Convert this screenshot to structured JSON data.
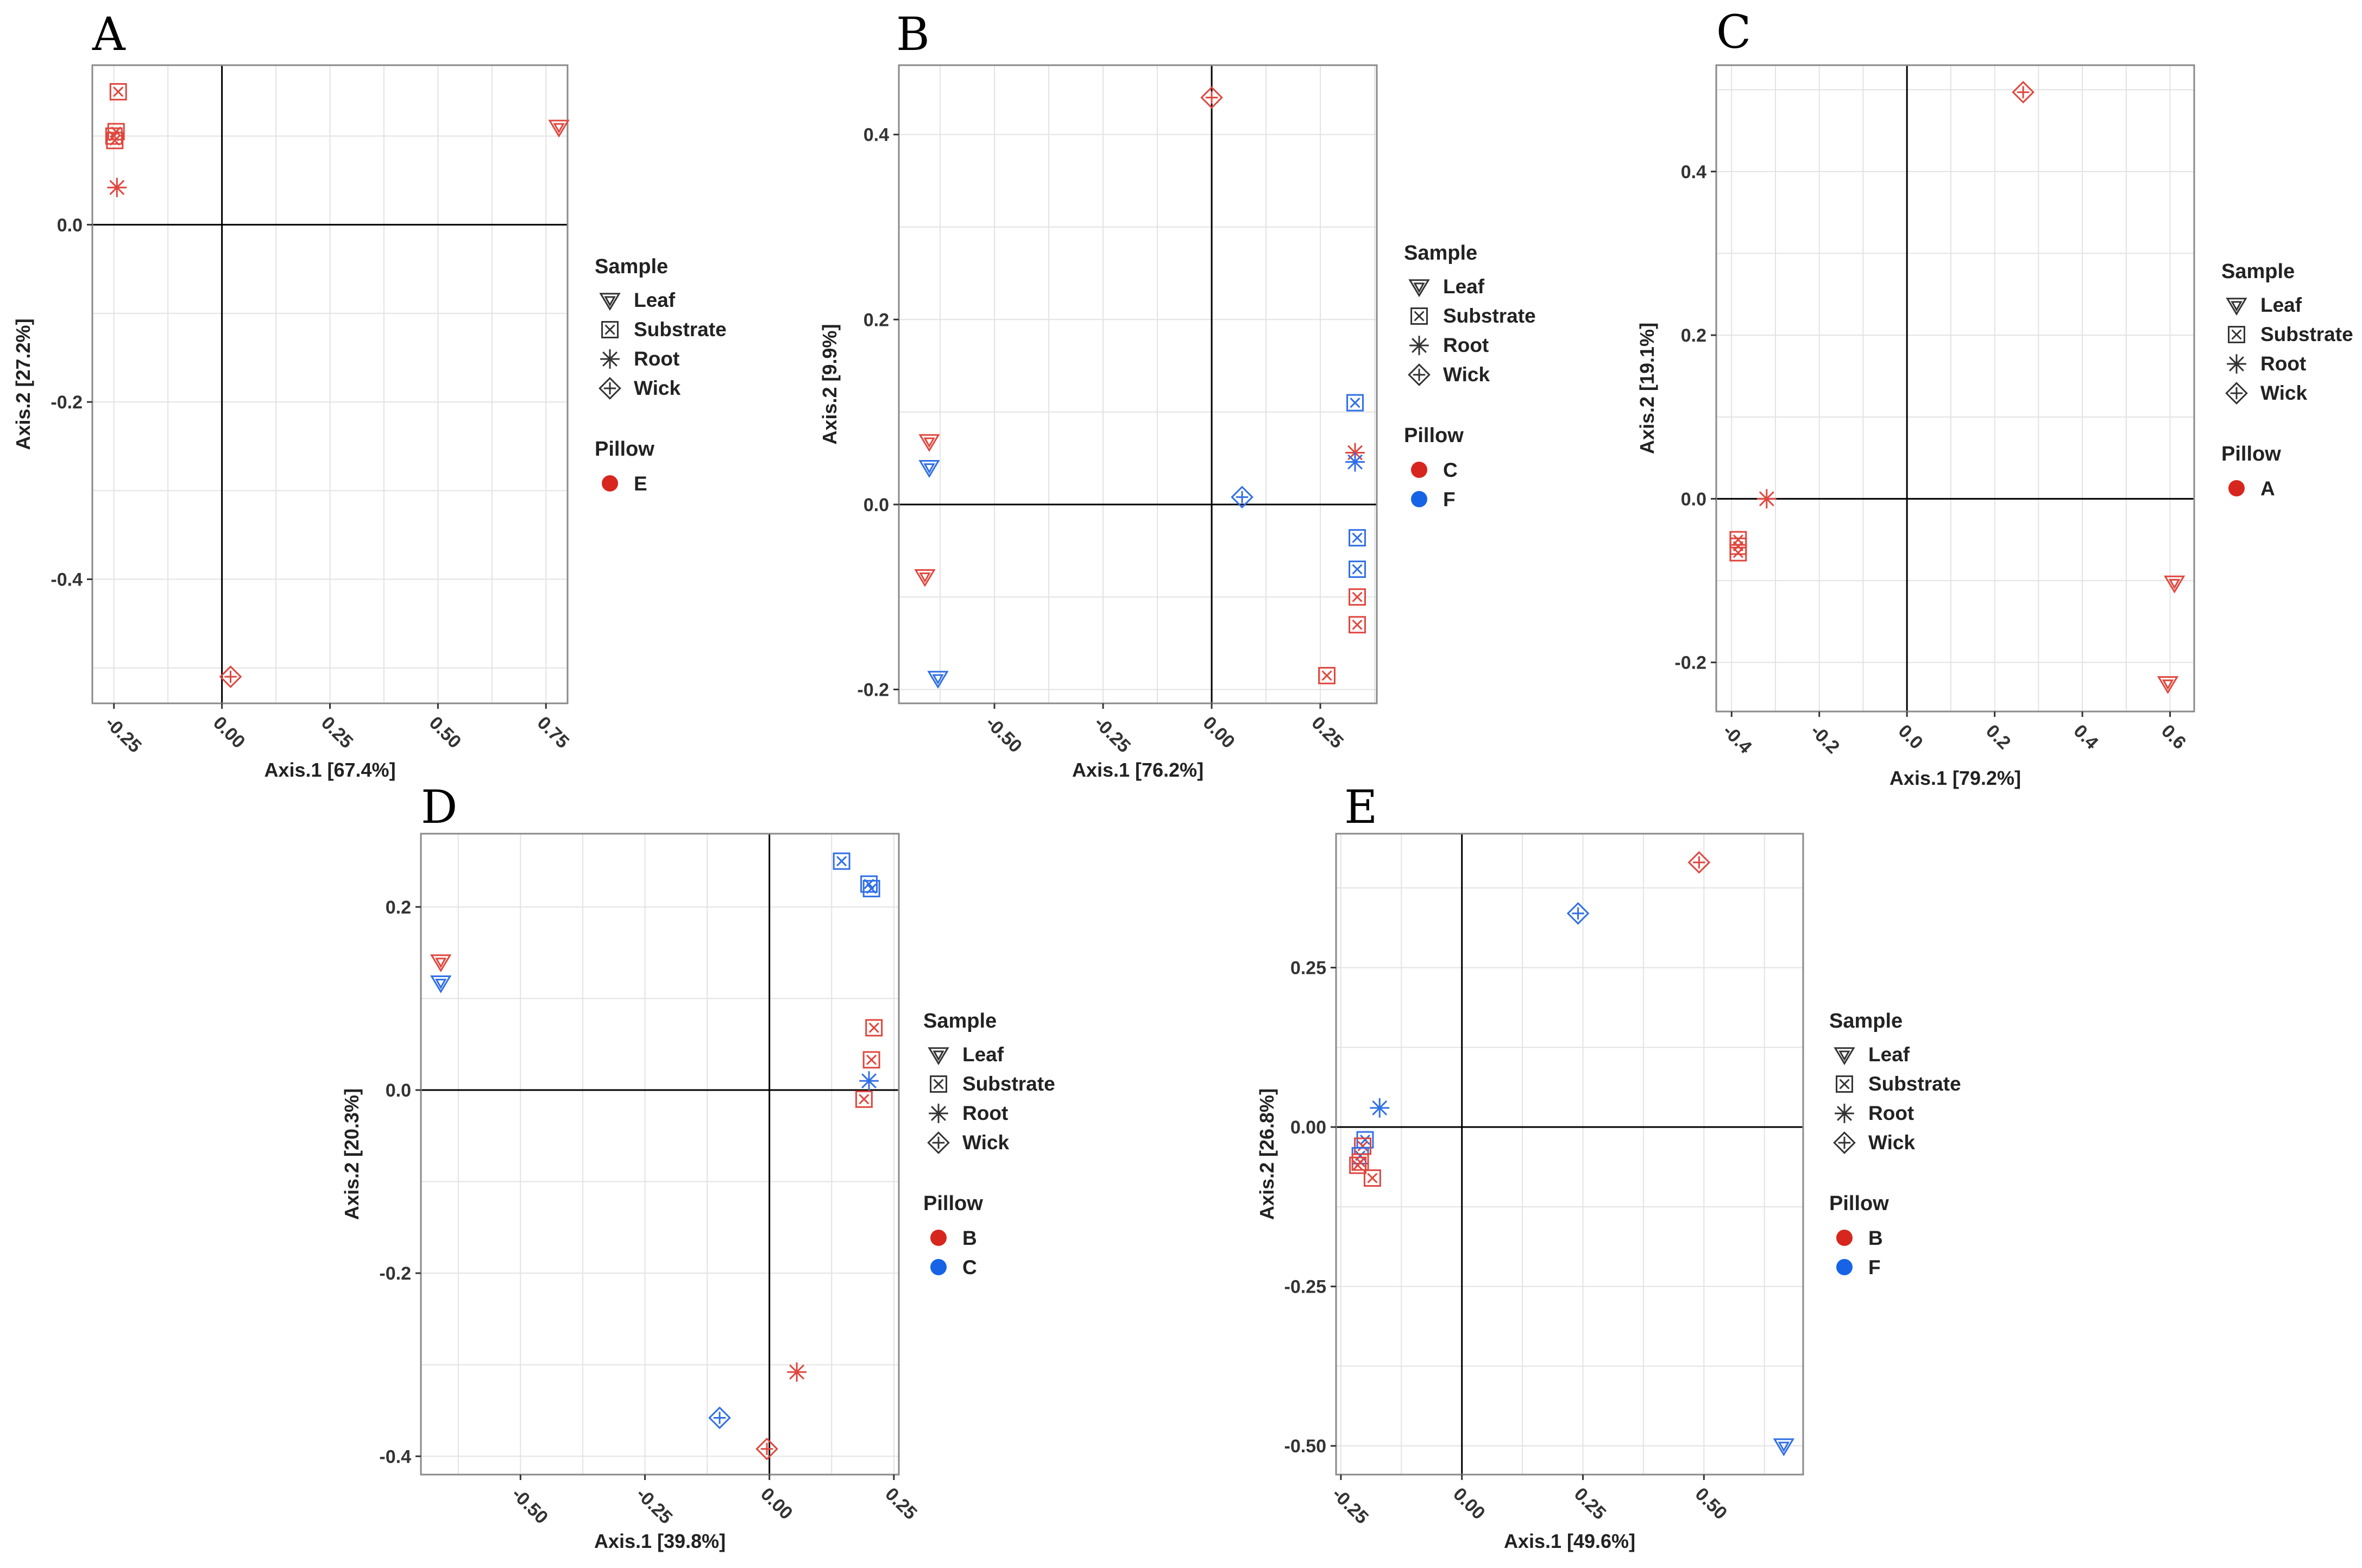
{
  "colors": {
    "red": "#e0463d",
    "blue": "#2f6fe6",
    "grid": "#e3e3e3",
    "frame": "#8a8a8a",
    "zero": "#000000",
    "legend_red": "#d7261e",
    "legend_blue": "#1763e6"
  },
  "legend": {
    "sample_title": "Sample",
    "pillow_title": "Pillow",
    "samples": [
      "Leaf",
      "Substrate",
      "Root",
      "Wick"
    ]
  },
  "chart_data": [
    {
      "id": "A",
      "letter": "A",
      "type": "scatter",
      "xlabel": "Axis.1   [67.4%]",
      "ylabel": "Axis.2   [27.2%]",
      "xlim": [
        -0.3,
        0.8
      ],
      "ylim": [
        -0.54,
        0.18
      ],
      "xticks": [
        -0.25,
        0.0,
        0.25,
        0.5,
        0.75
      ],
      "xticklabels": [
        "-0.25",
        "0.00",
        "0.25",
        "0.50",
        "0.75"
      ],
      "yticks": [
        -0.4,
        -0.2,
        0.0
      ],
      "yticklabels": [
        "-0.4",
        "-0.2",
        "0.0"
      ],
      "pillows": [
        {
          "name": "E",
          "color": "red"
        }
      ],
      "points": [
        {
          "x": -0.24,
          "y": 0.15,
          "sample": "Substrate",
          "pillow": "E"
        },
        {
          "x": -0.245,
          "y": 0.105,
          "sample": "Substrate",
          "pillow": "E"
        },
        {
          "x": -0.25,
          "y": 0.1,
          "sample": "Substrate",
          "pillow": "E"
        },
        {
          "x": -0.248,
          "y": 0.095,
          "sample": "Substrate",
          "pillow": "E"
        },
        {
          "x": -0.243,
          "y": 0.042,
          "sample": "Root",
          "pillow": "E"
        },
        {
          "x": 0.78,
          "y": 0.11,
          "sample": "Leaf",
          "pillow": "E"
        },
        {
          "x": 0.02,
          "y": -0.51,
          "sample": "Wick",
          "pillow": "E"
        }
      ]
    },
    {
      "id": "B",
      "letter": "B",
      "type": "scatter",
      "xlabel": "Axis.1   [76.2%]",
      "ylabel": "Axis.2   [9.9%]",
      "xlim": [
        -0.72,
        0.38
      ],
      "ylim": [
        -0.215,
        0.475
      ],
      "xticks": [
        -0.5,
        -0.25,
        0.0,
        0.25
      ],
      "xticklabels": [
        "-0.50",
        "-0.25",
        "0.00",
        "0.25"
      ],
      "yticks": [
        -0.2,
        0.0,
        0.2,
        0.4
      ],
      "yticklabels": [
        "-0.2",
        "0.0",
        "0.2",
        "0.4"
      ],
      "pillows": [
        {
          "name": "C",
          "color": "red"
        },
        {
          "name": "F",
          "color": "blue"
        }
      ],
      "points": [
        {
          "x": 0.0,
          "y": 0.44,
          "sample": "Wick",
          "pillow": "C"
        },
        {
          "x": -0.65,
          "y": 0.068,
          "sample": "Leaf",
          "pillow": "C"
        },
        {
          "x": -0.65,
          "y": 0.04,
          "sample": "Leaf",
          "pillow": "F"
        },
        {
          "x": -0.66,
          "y": -0.078,
          "sample": "Leaf",
          "pillow": "C"
        },
        {
          "x": -0.63,
          "y": -0.188,
          "sample": "Leaf",
          "pillow": "F"
        },
        {
          "x": 0.33,
          "y": 0.11,
          "sample": "Substrate",
          "pillow": "F"
        },
        {
          "x": 0.33,
          "y": 0.056,
          "sample": "Root",
          "pillow": "C"
        },
        {
          "x": 0.33,
          "y": 0.046,
          "sample": "Root",
          "pillow": "F"
        },
        {
          "x": 0.07,
          "y": 0.008,
          "sample": "Wick",
          "pillow": "F"
        },
        {
          "x": 0.335,
          "y": -0.036,
          "sample": "Substrate",
          "pillow": "F"
        },
        {
          "x": 0.335,
          "y": -0.07,
          "sample": "Substrate",
          "pillow": "F"
        },
        {
          "x": 0.335,
          "y": -0.1,
          "sample": "Substrate",
          "pillow": "C"
        },
        {
          "x": 0.335,
          "y": -0.13,
          "sample": "Substrate",
          "pillow": "C"
        },
        {
          "x": 0.265,
          "y": -0.185,
          "sample": "Substrate",
          "pillow": "C"
        }
      ]
    },
    {
      "id": "C",
      "letter": "C",
      "type": "scatter",
      "xlabel": "Axis.1   [79.2%]",
      "ylabel": "Axis.2   [19.1%]",
      "xlim": [
        -0.435,
        0.655
      ],
      "ylim": [
        -0.26,
        0.53
      ],
      "xticks": [
        -0.4,
        -0.2,
        0.0,
        0.2,
        0.4,
        0.6
      ],
      "xticklabels": [
        "-0.4",
        "-0.2",
        "0.0",
        "0.2",
        "0.4",
        "0.6"
      ],
      "yticks": [
        -0.2,
        0.0,
        0.2,
        0.4
      ],
      "yticklabels": [
        "-0.2",
        "0.0",
        "0.2",
        "0.4"
      ],
      "pillows": [
        {
          "name": "A",
          "color": "red"
        }
      ],
      "points": [
        {
          "x": 0.265,
          "y": 0.497,
          "sample": "Wick",
          "pillow": "A"
        },
        {
          "x": -0.32,
          "y": 0.0,
          "sample": "Root",
          "pillow": "A"
        },
        {
          "x": -0.385,
          "y": -0.05,
          "sample": "Substrate",
          "pillow": "A"
        },
        {
          "x": -0.385,
          "y": -0.058,
          "sample": "Substrate",
          "pillow": "A"
        },
        {
          "x": -0.385,
          "y": -0.066,
          "sample": "Substrate",
          "pillow": "A"
        },
        {
          "x": 0.61,
          "y": -0.103,
          "sample": "Leaf",
          "pillow": "A"
        },
        {
          "x": 0.595,
          "y": -0.226,
          "sample": "Leaf",
          "pillow": "A"
        }
      ]
    },
    {
      "id": "D",
      "letter": "D",
      "type": "scatter",
      "xlabel": "Axis.1   [39.8%]",
      "ylabel": "Axis.2   [20.3%]",
      "xlim": [
        -0.7,
        0.26
      ],
      "ylim": [
        -0.42,
        0.28
      ],
      "xticks": [
        -0.5,
        -0.25,
        0.0,
        0.25
      ],
      "xticklabels": [
        "-0.50",
        "-0.25",
        "0.00",
        "0.25"
      ],
      "yticks": [
        -0.4,
        -0.2,
        0.0,
        0.2
      ],
      "yticklabels": [
        "-0.4",
        "-0.2",
        "0.0",
        "0.2"
      ],
      "pillows": [
        {
          "name": "B",
          "color": "red"
        },
        {
          "name": "C",
          "color": "blue"
        }
      ],
      "points": [
        {
          "x": 0.145,
          "y": 0.25,
          "sample": "Substrate",
          "pillow": "C"
        },
        {
          "x": 0.2,
          "y": 0.225,
          "sample": "Substrate",
          "pillow": "C"
        },
        {
          "x": 0.205,
          "y": 0.22,
          "sample": "Substrate",
          "pillow": "C"
        },
        {
          "x": -0.66,
          "y": 0.14,
          "sample": "Leaf",
          "pillow": "B"
        },
        {
          "x": -0.66,
          "y": 0.117,
          "sample": "Leaf",
          "pillow": "C"
        },
        {
          "x": 0.21,
          "y": 0.068,
          "sample": "Substrate",
          "pillow": "B"
        },
        {
          "x": 0.205,
          "y": 0.033,
          "sample": "Substrate",
          "pillow": "B"
        },
        {
          "x": 0.2,
          "y": 0.01,
          "sample": "Root",
          "pillow": "C"
        },
        {
          "x": 0.19,
          "y": -0.01,
          "sample": "Substrate",
          "pillow": "B"
        },
        {
          "x": 0.055,
          "y": -0.308,
          "sample": "Root",
          "pillow": "B"
        },
        {
          "x": -0.1,
          "y": -0.358,
          "sample": "Wick",
          "pillow": "C"
        },
        {
          "x": -0.005,
          "y": -0.392,
          "sample": "Wick",
          "pillow": "B"
        }
      ]
    },
    {
      "id": "E",
      "letter": "E",
      "type": "scatter",
      "xlabel": "Axis.1   [49.6%]",
      "ylabel": "Axis.2   [26.8%]",
      "xlim": [
        -0.26,
        0.705
      ],
      "ylim": [
        -0.545,
        0.46
      ],
      "xticks": [
        -0.25,
        0.0,
        0.25,
        0.5
      ],
      "xticklabels": [
        "-0.25",
        "0.00",
        "0.25",
        "0.50"
      ],
      "yticks": [
        -0.5,
        -0.25,
        0.0,
        0.25
      ],
      "yticklabels": [
        "-0.50",
        "-0.25",
        "0.00",
        "0.25"
      ],
      "pillows": [
        {
          "name": "B",
          "color": "red"
        },
        {
          "name": "F",
          "color": "blue"
        }
      ],
      "points": [
        {
          "x": 0.49,
          "y": 0.415,
          "sample": "Wick",
          "pillow": "B"
        },
        {
          "x": 0.24,
          "y": 0.335,
          "sample": "Wick",
          "pillow": "F"
        },
        {
          "x": -0.17,
          "y": 0.03,
          "sample": "Root",
          "pillow": "F"
        },
        {
          "x": -0.2,
          "y": -0.02,
          "sample": "Substrate",
          "pillow": "F"
        },
        {
          "x": -0.205,
          "y": -0.03,
          "sample": "Substrate",
          "pillow": "B"
        },
        {
          "x": -0.21,
          "y": -0.045,
          "sample": "Substrate",
          "pillow": "F"
        },
        {
          "x": -0.21,
          "y": -0.055,
          "sample": "Substrate",
          "pillow": "B"
        },
        {
          "x": -0.215,
          "y": -0.06,
          "sample": "Substrate",
          "pillow": "B"
        },
        {
          "x": -0.185,
          "y": -0.08,
          "sample": "Substrate",
          "pillow": "B"
        },
        {
          "x": 0.665,
          "y": -0.5,
          "sample": "Leaf",
          "pillow": "F"
        }
      ]
    }
  ]
}
